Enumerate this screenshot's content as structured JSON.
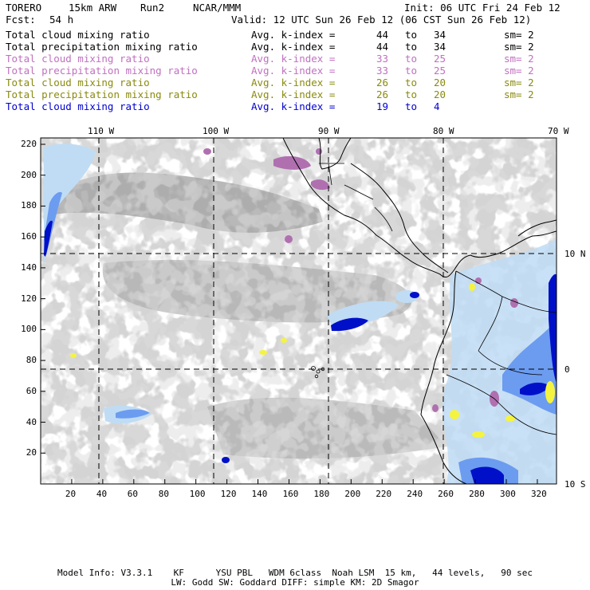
{
  "header": {
    "model": "TORERO",
    "resolution": "15km ARW",
    "run": "Run2",
    "org": "NCAR/MMM",
    "init": "Init: 06 UTC Fri 24 Feb 12",
    "fcst_label": "Fcst:",
    "fcst_value": "54 h",
    "valid": "Valid: 12 UTC Sun 26 Feb 12 (06 CST Sun 26 Feb 12)"
  },
  "legend": [
    {
      "field": "Total cloud mixing ratio",
      "avg": "Avg. k-index =",
      "from": "44",
      "to_word": "to",
      "to": "34",
      "sm": "sm= 2",
      "color": "#000000"
    },
    {
      "field": "Total precipitation mixing ratio",
      "avg": "Avg. k-index =",
      "from": "44",
      "to_word": "to",
      "to": "34",
      "sm": "sm= 2",
      "color": "#000000"
    },
    {
      "field": "Total cloud mixing ratio",
      "avg": "Avg. k-index =",
      "from": "33",
      "to_word": "to",
      "to": "25",
      "sm": "sm= 2",
      "color": "#c070c0"
    },
    {
      "field": "Total precipitation mixing ratio",
      "avg": "Avg. k-index =",
      "from": "33",
      "to_word": "to",
      "to": "25",
      "sm": "sm= 2",
      "color": "#c070c0"
    },
    {
      "field": "Total cloud mixing ratio",
      "avg": "Avg. k-index =",
      "from": "26",
      "to_word": "to",
      "to": "20",
      "sm": "sm= 2",
      "color": "#8a8a10"
    },
    {
      "field": "Total precipitation mixing ratio",
      "avg": "Avg. k-index =",
      "from": "26",
      "to_word": "to",
      "to": "20",
      "sm": "sm= 2",
      "color": "#8a8a10"
    },
    {
      "field": "Total cloud mixing ratio",
      "avg": "Avg. k-index =",
      "from": "19",
      "to_word": "to",
      "to": "4",
      "sm": "",
      "color": "#0000d0"
    }
  ],
  "map": {
    "lon_labels": [
      "110 W",
      "100 W",
      "90 W",
      "80 W",
      "70 W"
    ],
    "lat_labels": [
      "10 N",
      "0",
      "10 S"
    ],
    "x_ticks": [
      "20",
      "40",
      "60",
      "80",
      "100",
      "120",
      "140",
      "160",
      "180",
      "200",
      "220",
      "240",
      "260",
      "280",
      "300",
      "320"
    ],
    "y_ticks": [
      "20",
      "40",
      "60",
      "80",
      "100",
      "120",
      "140",
      "160",
      "180",
      "200",
      "220"
    ],
    "colors": {
      "gray_cloud": "#a8a8a8",
      "purple_cloud": "#b070b0",
      "yellow_cloud": "#f4f440",
      "light_blue": "#c0dcf4",
      "mid_blue": "#6c9cf0",
      "dark_blue": "#0010c8"
    }
  },
  "footer": {
    "line1": "Model Info: V3.3.1    KF      YSU PBL   WDM 6class  Noah LSM  15 km,   44 levels,   90 sec",
    "line2": "LW: Godd SW: Goddard DIFF: simple KM: 2D Smagor"
  }
}
